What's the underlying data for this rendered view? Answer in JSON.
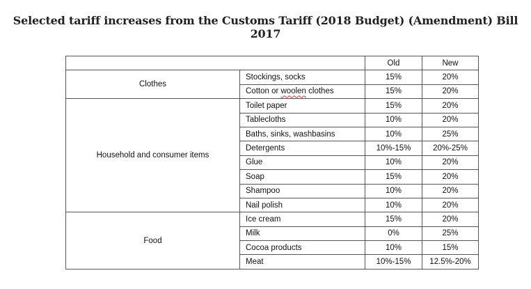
{
  "title": "Selected tariff increases from the Customs Tariff (2018 Budget) (Amendment) Bill 2017",
  "header": {
    "old": "Old",
    "new": "New"
  },
  "groups": [
    {
      "category": "Clothes",
      "rows": [
        {
          "item": "Stockings, socks",
          "old": "15%",
          "new": "20%"
        },
        {
          "item_prefix": "Cotton or ",
          "item_flagged": "woolen",
          "item_suffix": " clothes",
          "old": "15%",
          "new": "20%"
        }
      ]
    },
    {
      "category": "Household and consumer items",
      "rows": [
        {
          "item": "Toilet paper",
          "old": "15%",
          "new": "20%"
        },
        {
          "item": "Tablecloths",
          "old": "10%",
          "new": "20%"
        },
        {
          "item": "Baths, sinks, washbasins",
          "old": "10%",
          "new": "25%"
        },
        {
          "item": "Detergents",
          "old": "10%-15%",
          "new": "20%-25%"
        },
        {
          "item": "Glue",
          "old": "10%",
          "new": "20%"
        },
        {
          "item": "Soap",
          "old": "15%",
          "new": "20%"
        },
        {
          "item": "Shampoo",
          "old": "10%",
          "new": "20%"
        },
        {
          "item": "Nail polish",
          "old": "10%",
          "new": "20%"
        }
      ]
    },
    {
      "category": "Food",
      "rows": [
        {
          "item": "Ice cream",
          "old": "15%",
          "new": "20%"
        },
        {
          "item": "Milk",
          "old": "0%",
          "new": "25%"
        },
        {
          "item": "Cocoa products",
          "old": "10%",
          "new": "15%"
        },
        {
          "item": "Meat",
          "old": "10%-15%",
          "new": "12.5%-20%"
        }
      ]
    }
  ]
}
